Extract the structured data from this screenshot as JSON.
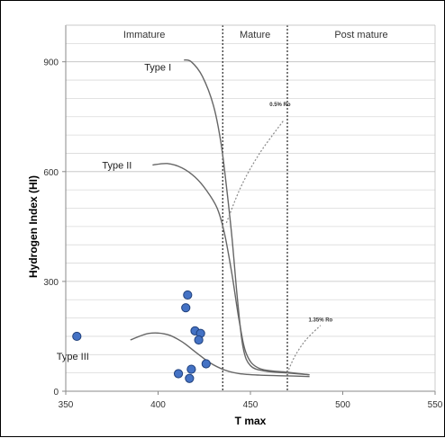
{
  "chart_data": {
    "type": "scatter",
    "xlabel": "T max",
    "ylabel": "Hydrogen Index (HI)",
    "xlim": [
      350,
      550
    ],
    "ylim": [
      0,
      1000
    ],
    "x_ticks": [
      "350",
      "400",
      "450",
      "500",
      "550"
    ],
    "y_ticks": [
      "0",
      "300",
      "600",
      "900"
    ],
    "grid": "horizontal",
    "zones": [
      {
        "label": "Immature",
        "x_from": 350,
        "x_to": 435
      },
      {
        "label": "Mature",
        "x_from": 435,
        "x_to": 470
      },
      {
        "label": "Post mature",
        "x_from": 470,
        "x_to": 550
      }
    ],
    "zone_boundaries": [
      435,
      470
    ],
    "kerogen_curves": [
      {
        "name": "Type I",
        "x": [
          414,
          418,
          424,
          430,
          434,
          437,
          440,
          443,
          446,
          450,
          458,
          470,
          482
        ],
        "y": [
          905,
          900,
          860,
          780,
          680,
          560,
          420,
          250,
          120,
          70,
          55,
          50,
          45
        ]
      },
      {
        "name": "Type II",
        "x": [
          397,
          405,
          413,
          420,
          426,
          432,
          436,
          440,
          444,
          448,
          455,
          470,
          482
        ],
        "y": [
          618,
          622,
          610,
          585,
          550,
          500,
          430,
          320,
          190,
          100,
          62,
          52,
          45
        ]
      },
      {
        "name": "Type III",
        "x": [
          385,
          395,
          405,
          413,
          420,
          428,
          436,
          444,
          455,
          470,
          482
        ],
        "y": [
          140,
          158,
          155,
          135,
          108,
          78,
          58,
          48,
          44,
          42,
          40
        ]
      }
    ],
    "iso_reflectance": [
      {
        "label": "0.5% Ro",
        "x": [
          437,
          445,
          455,
          468
        ],
        "y": [
          460,
          560,
          650,
          740
        ]
      },
      {
        "label": "1.35% Ro",
        "x": [
          470,
          474,
          480,
          488
        ],
        "y": [
          50,
          95,
          140,
          180
        ]
      }
    ],
    "points": {
      "x": [
        356,
        416,
        415,
        420,
        423,
        422,
        426,
        418,
        411,
        417
      ],
      "y": [
        150,
        263,
        228,
        165,
        158,
        140,
        75,
        60,
        48,
        35
      ]
    },
    "colors": {
      "points": "#4472c4",
      "point_edge": "#1f3f7a",
      "curves": "#666666",
      "grid": "#d9d9d9"
    }
  }
}
